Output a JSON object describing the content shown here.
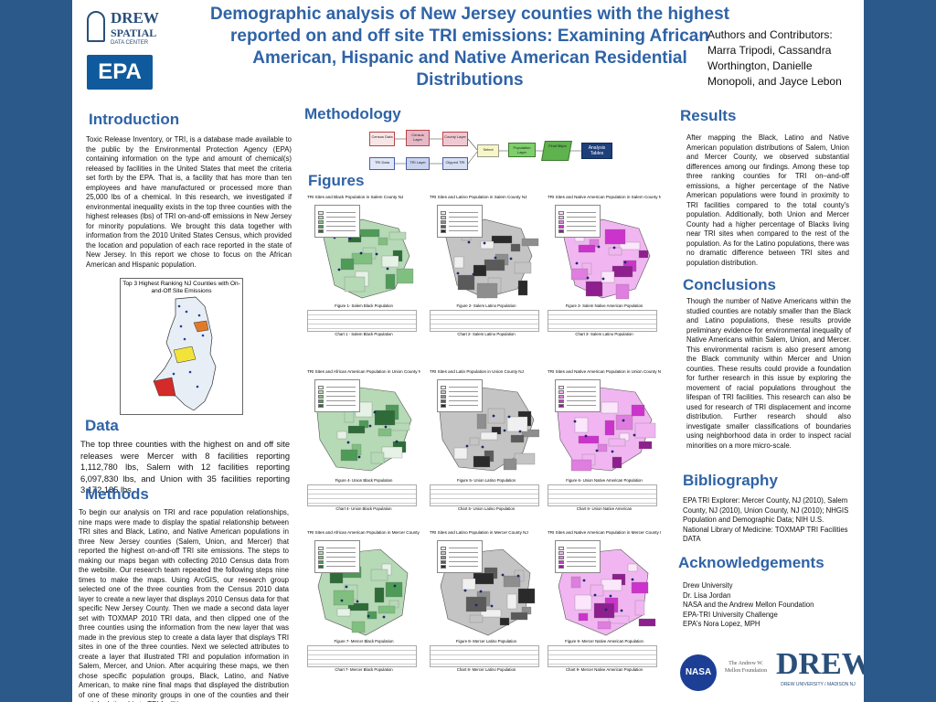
{
  "header": {
    "title": "Demographic analysis of New Jersey counties with the highest reported on and off site TRI emissions: Examining African American, Hispanic and Native American Residential Distributions",
    "authors_heading": "Authors and Contributors:",
    "authors": "Marra Tripodi, Cassandra Worthington, Danielle Monopoli, and Jayce Lebon"
  },
  "logos": {
    "drew_line1": "DREW",
    "drew_line2": "SPATIAL",
    "drew_line3": "DATA CENTER",
    "epa": "EPA",
    "nasa": "NASA",
    "mellon": "The Andrew W. Mellon Foundation",
    "drew_big": "DREW",
    "drew_big_sub": "DREW UNIVERSITY / MADISON NJ"
  },
  "introduction": {
    "heading": "Introduction",
    "text": "Toxic Release Inventory, or TRI, is a database made available to the public by the Environmental Protection Agency (EPA) containing information on the type and amount of chemical(s) released by facilities in the United States that meet the criteria set forth by the EPA. That is, a facility that has more than ten employees and have manufactured or processed more than 25,000 lbs of a chemical. In this research, we investigated if environmental inequality exists in the top three counties with the highest releases (lbs) of TRI on-and-off emissions in New Jersey for minority populations. We brought this data together with information from the 2010 United States Census, which provided the location and population of each race reported in the state of New Jersey. In this report we chose to focus on the African American and Hispanic population.",
    "map_caption": "Top 3 Highest Ranking NJ Counties with On-and-Off Site Emissions"
  },
  "data": {
    "heading": "Data",
    "text": "The top three counties with the highest on and off site releases were Mercer with 8 facilities reporting 1,112,780 lbs, Salem with 12 facilities reporting 6,097,830 lbs, and Union with 35 facilities reporting 3,172,185 lbs."
  },
  "methods": {
    "heading": "Methods",
    "text": "To begin our analysis on TRI and race population relationships, nine maps were made to display the spatial relationship between TRI sites and Black, Latino, and Native American populations in three New Jersey counties (Salem, Union, and Mercer) that reported the highest on-and-off TRI site emissions. The steps to making our maps began with collecting 2010 Census data from the website. Our research team repeated the following steps nine times to make the maps. Using ArcGIS, our research group selected one of the three counties from the Census 2010 data layer to create a new layer that displays 2010 Census data for that specific New Jersey County. Then we made a second data layer set with TOXMAP 2010 TRI data, and then clipped one of the three counties using the information from the new layer that was made in the previous step to create a data layer that displays TRI sites in one of the three counties. Next we selected attributes to create a layer that illustrated TRI and population information in Salem, Mercer, and Union. After acquiring these maps, we then chose specific population groups, Black, Latino, and Native American, to make nine final maps that displayed the distribution of one of these minority groups in one of the counties and their spatial relationship to TRI facilities."
  },
  "methodology": {
    "heading": "Methodology",
    "flow": [
      "Census Data",
      "Census Layer",
      "County Layer",
      "TRI Data",
      "TRI Layer",
      "Clipped TRI",
      "Select",
      "Population Layer",
      "Final Maps",
      "Analysis Tables"
    ]
  },
  "figures": {
    "heading": "Figures",
    "items": [
      {
        "title": "TRI Sites and Black Population in Salem County NJ",
        "caption": "Figure 1- Salem Black Population",
        "chart": "Chart 1 - Salem Black Population"
      },
      {
        "title": "TRI Sites and Latino Population in Salem County NJ",
        "caption": "Figure 2- Salem Latino Population",
        "chart": "Chart 2- Salem Latino Population"
      },
      {
        "title": "TRI Sites and Native American Population in Salem County NJ",
        "caption": "Figure 3- Salem Native American Population",
        "chart": "Chart 3- Salem Latino Population"
      },
      {
        "title": "TRI Sites and African American Population in Union County NJ",
        "caption": "Figure 4- Union Black Population",
        "chart": "Chart 4- Union Black Population"
      },
      {
        "title": "TRI Sites and Latin Population in Union County NJ",
        "caption": "Figure 5- Union Latino Population",
        "chart": "Chart 5- Union Latino Population"
      },
      {
        "title": "TRI Sites and Native American Population in Union County NJ",
        "caption": "Figure 6- Union Native American Population",
        "chart": "Chart 6- Union Native American"
      },
      {
        "title": "TRI Sites and African American Population in Mercer County",
        "caption": "Figure 7- Mercer Black Population",
        "chart": "Chart 7- Mercer Black Population"
      },
      {
        "title": "TRI Sites and Latino Population in Mercer County NJ",
        "caption": "Figure 8- Mercer Latino Population",
        "chart": "Chart 8- Mercer Latino Population"
      },
      {
        "title": "TRI Sites and Native American Population in Mercer County NJ",
        "caption": "Figure 9- Mercer Native American Population",
        "chart": "Chart 9- Mercer Native American Population"
      }
    ]
  },
  "results": {
    "heading": "Results",
    "text": "After mapping the Black, Latino and Native American population distributions of Salem, Union and Mercer County, we observed substantial differences among our findings. Among these top three ranking counties for TRI on–and-off emissions, a higher percentage of the Native American populations were found in proximity to TRI facilities compared to the total county's population. Additionally, both Union and Mercer County had a higher percentage of Blacks living near TRI sites when compared to the rest of the population. As for the Latino populations, there was no dramatic difference between TRI sites and population distribution."
  },
  "conclusions": {
    "heading": "Conclusions",
    "text": "Though the number of Native Americans within the studied counties are notably smaller than the Black and Latino populations, these results provide preliminary evidence for environmental inequality of Native Americans within Salem, Union, and Mercer. This environmental racism is also present among the Black community within Mercer and Union counties. These results could provide a foundation for further research in this issue by exploring the movement of racial populations throughout the lifespan of TRI facilities. This research can also be used for research of TRI displacement and income distribution. Further research should also investigate smaller classifications of boundaries using neighborhood data in order to inspect racial minorities on a more micro-scale."
  },
  "bibliography": {
    "heading": "Bibliography",
    "text": "EPA TRI Explorer: Mercer County, NJ (2010), Salem County, NJ (2010), Union County, NJ (2010); NHGIS Population and Demographic Data; NIH U.S. National Library of Medicine: TOXMAP TRI Facilities DATA"
  },
  "acknowledgements": {
    "heading": "Acknowledgements",
    "items": [
      "Drew University",
      "Dr. Lisa Jordan",
      "NASA and the Andrew Mellon Foundation",
      "EPA-TRI University Challenge",
      "EPA's Nora Lopez, MPH"
    ]
  },
  "colors": {
    "background": "#2b5a8a",
    "heading": "#2f63a6",
    "black_population": "#4e9a57",
    "latino_population": "#4a4a4a",
    "native_population": "#cc33cc"
  }
}
